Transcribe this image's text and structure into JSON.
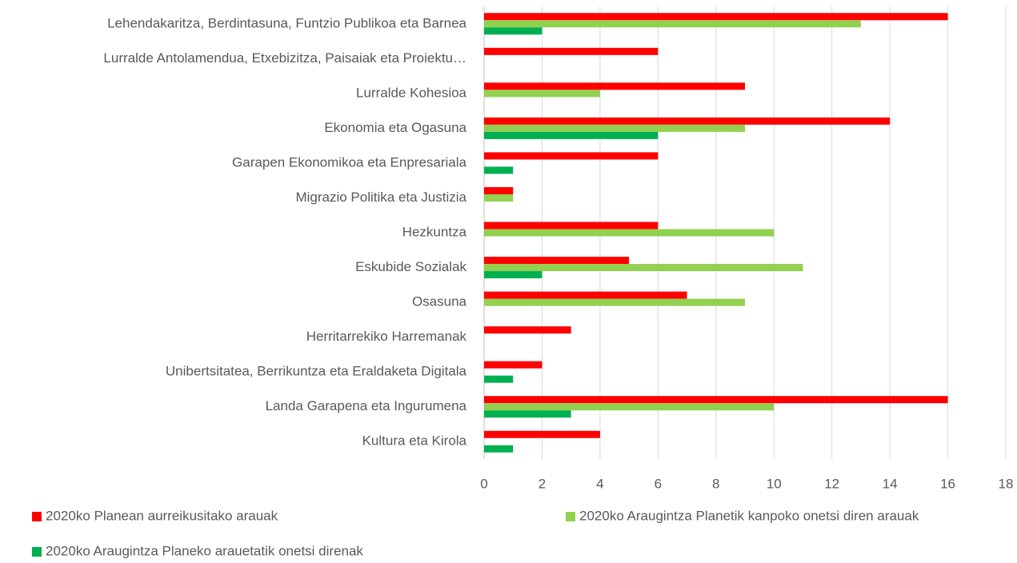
{
  "chart_data": {
    "type": "bar",
    "orientation": "horizontal",
    "categories": [
      "Lehendakaritza, Berdintasuna, Funtzio Publikoa eta Barnea",
      "Lurralde Antolamendua, Etxebizitza, Paisaiak eta Proiektu…",
      "Lurralde Kohesioa",
      "Ekonomia eta Ogasuna",
      "Garapen Ekonomikoa eta Enpresariala",
      "Migrazio Politika eta Justizia",
      "Hezkuntza",
      "Eskubide Sozialak",
      "Osasuna",
      "Herritarrekiko Harremanak",
      "Unibertsitatea, Berrikuntza eta Eraldaketa Digitala",
      "Landa Garapena eta Ingurumena",
      "Kultura eta Kirola"
    ],
    "series": [
      {
        "name": "2020ko Planean aurreikusitako arauak",
        "color": "#ff0000",
        "values": [
          16,
          6,
          9,
          14,
          6,
          1,
          6,
          5,
          7,
          3,
          2,
          16,
          4
        ]
      },
      {
        "name": "2020ko Araugintza Planetik kanpoko onetsi diren arauak",
        "color": "#92d050",
        "values": [
          13,
          0,
          4,
          9,
          0,
          1,
          10,
          11,
          9,
          0,
          0,
          10,
          0
        ]
      },
      {
        "name": "2020ko Araugintza Planeko arauetatik onetsi direnak",
        "color": "#00b050",
        "values": [
          2,
          0,
          0,
          6,
          1,
          0,
          0,
          2,
          0,
          0,
          1,
          3,
          1
        ]
      }
    ],
    "xlim": [
      0,
      18
    ],
    "xticks": [
      0,
      2,
      4,
      6,
      8,
      10,
      12,
      14,
      16,
      18
    ],
    "grid": true,
    "legend": "bottom"
  }
}
